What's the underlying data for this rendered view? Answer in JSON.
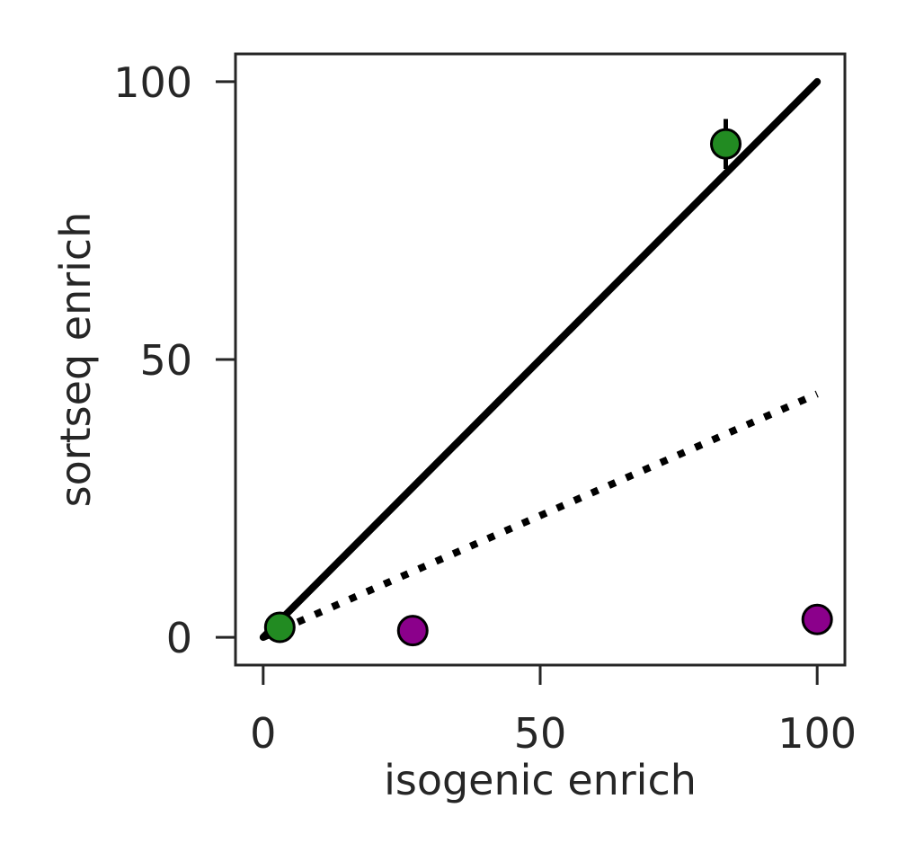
{
  "chart_data": {
    "type": "scatter",
    "title": "",
    "xlabel": "isogenic enrich",
    "ylabel": "sortseq enrich",
    "xlim": [
      -5,
      105
    ],
    "ylim": [
      -5,
      105
    ],
    "xticks": [
      0,
      50,
      100
    ],
    "yticks": [
      0,
      50,
      100
    ],
    "grid": false,
    "legend": "none",
    "series": [
      {
        "color": "#228B22",
        "points": [
          {
            "x": 3,
            "y": 1.8
          },
          {
            "x": 83.5,
            "y": 88.8,
            "xerr": 2.5,
            "yerr": 4.5
          }
        ]
      },
      {
        "color": "#8B008B",
        "points": [
          {
            "x": 27,
            "y": 1.2
          },
          {
            "x": 100,
            "y": 3.2
          }
        ]
      }
    ],
    "lines": [
      {
        "style": "solid",
        "color": "#000000",
        "x": [
          0,
          100
        ],
        "y": [
          0,
          100
        ]
      },
      {
        "style": "dotted",
        "color": "#000000",
        "x": [
          0,
          100
        ],
        "y": [
          0,
          43.8
        ]
      }
    ]
  }
}
